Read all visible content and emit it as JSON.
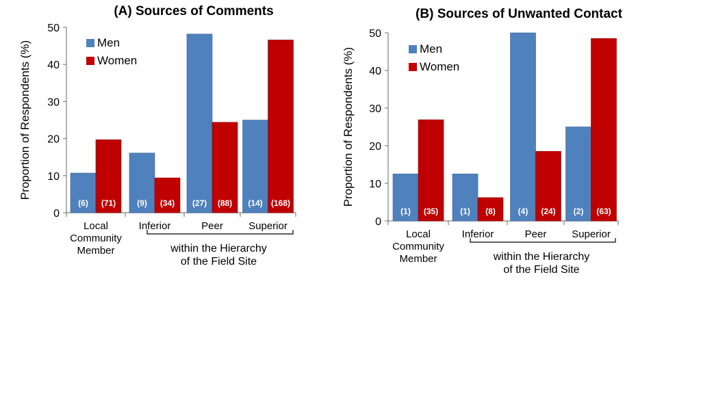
{
  "chart_data": [
    {
      "type": "bar",
      "title": "(A) Sources of Comments",
      "ylabel": "Proportion of Respondents (%)",
      "xlabel": "",
      "ylim": [
        0,
        50
      ],
      "yticks": [
        0,
        10,
        20,
        30,
        40,
        50
      ],
      "categories": [
        [
          "Local",
          "Community",
          "Member"
        ],
        [
          "Inferior"
        ],
        [
          "Peer"
        ],
        [
          "Superior"
        ]
      ],
      "group_label": [
        "within the Hierarchy",
        "of the Field Site"
      ],
      "legend": "top-left",
      "series": [
        {
          "name": "Men",
          "color": "#4F81BD",
          "values": [
            10.7,
            16.1,
            48.2,
            25.0
          ],
          "labels": [
            "(6)",
            "(9)",
            "(27)",
            "(14)"
          ]
        },
        {
          "name": "Women",
          "color": "#C00000",
          "values": [
            19.7,
            9.4,
            24.4,
            46.6
          ],
          "labels": [
            "(71)",
            "(34)",
            "(88)",
            "(168)"
          ]
        }
      ]
    },
    {
      "type": "bar",
      "title": "(B) Sources of Unwanted Contact",
      "ylabel": "Proportion of Respondents (%)",
      "xlabel": "",
      "ylim": [
        0,
        50
      ],
      "yticks": [
        0,
        10,
        20,
        30,
        40,
        50
      ],
      "categories": [
        [
          "Local",
          "Community",
          "Member"
        ],
        [
          "Inferior"
        ],
        [
          "Peer"
        ],
        [
          "Superior"
        ]
      ],
      "group_label": [
        "within the Hierarchy",
        "of the Field Site"
      ],
      "legend": "top-left",
      "series": [
        {
          "name": "Men",
          "color": "#4F81BD",
          "values": [
            12.5,
            12.5,
            50.0,
            25.0
          ],
          "labels": [
            "(1)",
            "(1)",
            "(4)",
            "(2)"
          ]
        },
        {
          "name": "Women",
          "color": "#C00000",
          "values": [
            26.9,
            6.2,
            18.5,
            48.5
          ],
          "labels": [
            "(35)",
            "(8)",
            "(24)",
            "(63)"
          ]
        }
      ]
    }
  ]
}
